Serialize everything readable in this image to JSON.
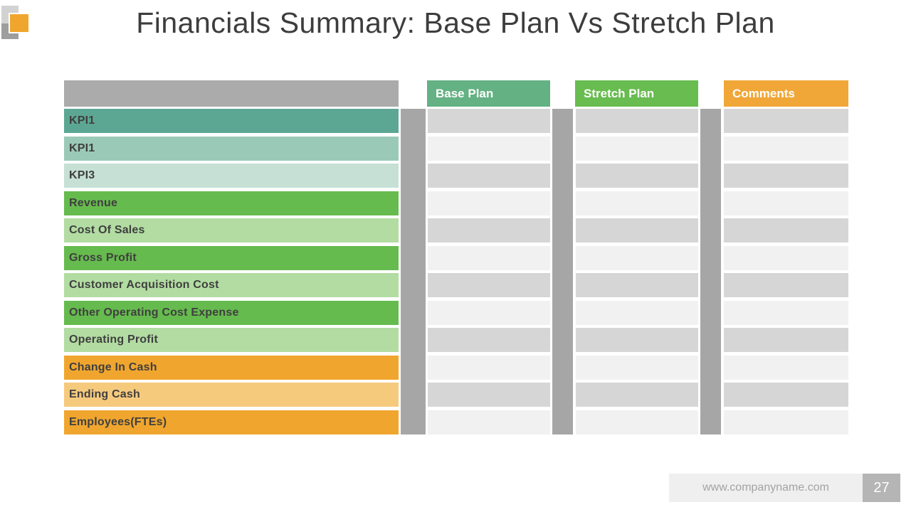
{
  "slide": {
    "title": "Financials Summary: Base Plan Vs Stretch Plan"
  },
  "decoration": {
    "light_gray": "#d2d2d2",
    "dark_gray": "#9e9e9e",
    "orange": "#f0a62e"
  },
  "table": {
    "headers": [
      {
        "id": "blank",
        "label": "",
        "bg": "#ababab"
      },
      {
        "id": "base-plan",
        "label": "Base Plan",
        "bg": "#64b183"
      },
      {
        "id": "stretch-plan",
        "label": "Stretch Plan",
        "bg": "#68bc50"
      },
      {
        "id": "comments",
        "label": "Comments",
        "bg": "#f0a738"
      }
    ],
    "rows": [
      {
        "label": "KPI1",
        "bg": "#5ca794"
      },
      {
        "label": "KPI1",
        "bg": "#9bc9b8"
      },
      {
        "label": "KPI3",
        "bg": "#c6e0d5"
      },
      {
        "label": "Revenue",
        "bg": "#66bb4e"
      },
      {
        "label": "Cost Of Sales",
        "bg": "#b2dca2"
      },
      {
        "label": "Gross Profit",
        "bg": "#66bb4e"
      },
      {
        "label": "Customer Acquisition Cost",
        "bg": "#b2dca2"
      },
      {
        "label": "Other Operating Cost Expense",
        "bg": "#66bb4e"
      },
      {
        "label": "Operating Profit",
        "bg": "#b2dca2"
      },
      {
        "label": "Change In Cash",
        "bg": "#f0a62e"
      },
      {
        "label": "Ending Cash",
        "bg": "#f6ca7d"
      },
      {
        "label": "Employees(FTEs)",
        "bg": "#f0a62e"
      }
    ],
    "data_columns": [
      "base-plan",
      "stretch-plan",
      "comments"
    ],
    "band_dark": "#d6d6d6",
    "band_light": "#f1f1f1",
    "spacer_color": "#a6a6a6",
    "label_text_color": "#3f3f3f"
  },
  "footer": {
    "url_text": "www.companyname.com",
    "page_number": "27",
    "bar_bg": "#efefef",
    "text_color": "#a3a3a3",
    "badge_bg": "#b5b5b5"
  }
}
